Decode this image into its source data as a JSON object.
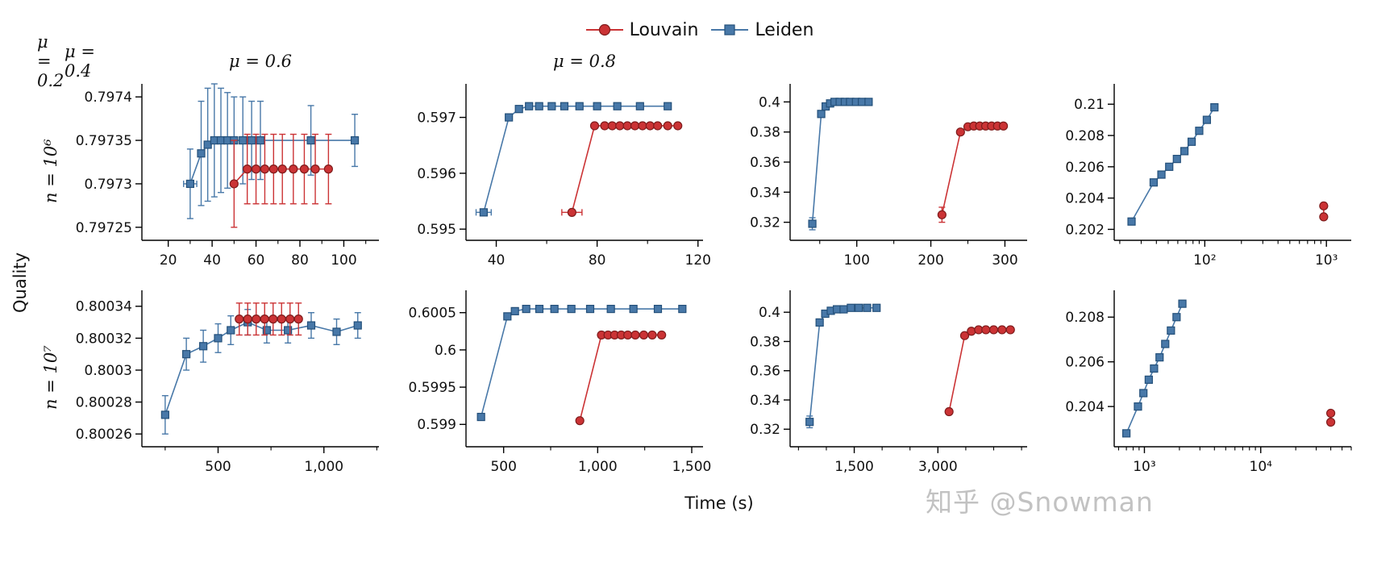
{
  "colors": {
    "louvain": "#cb3335",
    "louvain_edge": "#7f1c1c",
    "leiden": "#4878a8",
    "leiden_edge": "#24507a",
    "axis": "#000000",
    "watermark": "#bdbdbd"
  },
  "watermark": "知乎 @Snowman",
  "chart_data": {
    "type": "line",
    "layout": "2x4 small multiples with error bars",
    "legend_position": "top center",
    "legend": [
      {
        "key": "louvain",
        "label": "Louvain",
        "marker": "circle"
      },
      {
        "key": "leiden",
        "label": "Leiden",
        "marker": "square"
      }
    ],
    "xlabel": "Time (s)",
    "ylabel": "Quality",
    "col_titles": [
      "μ = 0.2",
      "μ = 0.4",
      "μ = 0.6",
      "μ = 0.8"
    ],
    "row_labels": [
      "n = 10⁶",
      "n = 10⁷"
    ],
    "subplots": [
      {
        "mu": "μ = 0.2",
        "n": "n = 10⁶",
        "xscale": "linear",
        "xlim": [
          8,
          116
        ],
        "xticks": [
          {
            "v": 20,
            "label": "20"
          },
          {
            "v": 40,
            "label": "40"
          },
          {
            "v": 60,
            "label": "60"
          },
          {
            "v": 80,
            "label": "80"
          },
          {
            "v": 100,
            "label": "100"
          }
        ],
        "xminor": [
          30,
          50,
          70,
          90,
          110
        ],
        "ylim": [
          0.797235,
          0.797415
        ],
        "yticks": [
          {
            "v": 0.79725,
            "label": "0.79725"
          },
          {
            "v": 0.7973,
            "label": "0.7973"
          },
          {
            "v": 0.79735,
            "label": "0.79735"
          },
          {
            "v": 0.7974,
            "label": "0.7974"
          }
        ],
        "series": [
          {
            "key": "leiden",
            "name": "Leiden",
            "marker": "square",
            "x": [
              30,
              35,
              38,
              41,
              44,
              47,
              50,
              54,
              58,
              62,
              85,
              105
            ],
            "y": [
              0.7973,
              0.797335,
              0.797345,
              0.79735,
              0.79735,
              0.79735,
              0.79735,
              0.79735,
              0.79735,
              0.79735,
              0.79735,
              0.79735
            ],
            "yerr": [
              4e-05,
              6e-05,
              6.5e-05,
              6.5e-05,
              6e-05,
              5.5e-05,
              5e-05,
              5e-05,
              4.5e-05,
              4.5e-05,
              4e-05,
              3e-05
            ],
            "xerr": [
              3,
              0,
              0,
              0,
              0,
              0,
              0,
              0,
              0,
              0,
              0,
              0
            ]
          },
          {
            "key": "louvain",
            "name": "Louvain",
            "marker": "circle",
            "x": [
              50,
              56,
              60,
              64,
              68,
              72,
              77,
              82,
              87,
              93
            ],
            "y": [
              0.7973,
              0.797317,
              0.797317,
              0.797317,
              0.797317,
              0.797317,
              0.797317,
              0.797317,
              0.797317,
              0.797317
            ],
            "yerr": [
              5e-05,
              4e-05,
              4e-05,
              4e-05,
              4e-05,
              4e-05,
              4e-05,
              4e-05,
              4e-05,
              4e-05
            ]
          }
        ]
      },
      {
        "mu": "μ = 0.4",
        "n": "n = 10⁶",
        "xscale": "linear",
        "xlim": [
          28,
          122
        ],
        "xticks": [
          {
            "v": 40,
            "label": "40"
          },
          {
            "v": 80,
            "label": "80"
          },
          {
            "v": 120,
            "label": "120"
          }
        ],
        "xminor": [
          60,
          100
        ],
        "ylim": [
          0.5948,
          0.5976
        ],
        "yticks": [
          {
            "v": 0.595,
            "label": "0.595"
          },
          {
            "v": 0.596,
            "label": "0.596"
          },
          {
            "v": 0.597,
            "label": "0.597"
          }
        ],
        "series": [
          {
            "key": "leiden",
            "name": "Leiden",
            "marker": "square",
            "x": [
              35,
              45,
              49,
              53,
              57,
              62,
              67,
              73,
              80,
              88,
              97,
              108
            ],
            "y": [
              0.5953,
              0.597,
              0.59715,
              0.5972,
              0.5972,
              0.5972,
              0.5972,
              0.5972,
              0.5972,
              0.5972,
              0.5972,
              0.5972
            ],
            "xerr": [
              3,
              0,
              0,
              0,
              0,
              0,
              0,
              0,
              0,
              0,
              0,
              0
            ]
          },
          {
            "key": "louvain",
            "name": "Louvain",
            "marker": "circle",
            "x": [
              70,
              79,
              83,
              86,
              89,
              92,
              95,
              98,
              101,
              104,
              108,
              112
            ],
            "y": [
              0.5953,
              0.59685,
              0.59685,
              0.59685,
              0.59685,
              0.59685,
              0.59685,
              0.59685,
              0.59685,
              0.59685,
              0.59685,
              0.59685
            ],
            "xerr": [
              4,
              0,
              0,
              0,
              0,
              0,
              0,
              0,
              0,
              0,
              0,
              0
            ]
          }
        ]
      },
      {
        "mu": "μ = 0.6",
        "n": "n = 10⁶",
        "xscale": "linear",
        "xlim": [
          10,
          330
        ],
        "xticks": [
          {
            "v": 100,
            "label": "100"
          },
          {
            "v": 200,
            "label": "200"
          },
          {
            "v": 300,
            "label": "300"
          }
        ],
        "xminor": [
          50,
          150,
          250
        ],
        "ylim": [
          0.308,
          0.412
        ],
        "yticks": [
          {
            "v": 0.32,
            "label": "0.32"
          },
          {
            "v": 0.34,
            "label": "0.34"
          },
          {
            "v": 0.36,
            "label": "0.36"
          },
          {
            "v": 0.38,
            "label": "0.38"
          },
          {
            "v": 0.4,
            "label": "0.4"
          }
        ],
        "series": [
          {
            "key": "leiden",
            "name": "Leiden",
            "marker": "square",
            "x": [
              40,
              52,
              58,
              64,
              70,
              77,
              84,
              91,
              99,
              107,
              116
            ],
            "y": [
              0.319,
              0.392,
              0.397,
              0.399,
              0.4,
              0.4,
              0.4,
              0.4,
              0.4,
              0.4,
              0.4
            ],
            "yerr": [
              0.004,
              0,
              0,
              0,
              0,
              0,
              0,
              0,
              0,
              0,
              0
            ]
          },
          {
            "key": "louvain",
            "name": "Louvain",
            "marker": "circle",
            "x": [
              215,
              240,
              250,
              258,
              266,
              274,
              282,
              290,
              298
            ],
            "y": [
              0.325,
              0.38,
              0.3835,
              0.384,
              0.384,
              0.384,
              0.384,
              0.384,
              0.384
            ],
            "yerr": [
              0.005,
              0,
              0,
              0,
              0,
              0,
              0,
              0,
              0
            ]
          }
        ]
      },
      {
        "mu": "μ = 0.8",
        "n": "n = 10⁶",
        "xscale": "log",
        "xlim": [
          18,
          1600
        ],
        "xticks": [
          {
            "v": 100,
            "label": "10²"
          },
          {
            "v": 1000,
            "label": "10³"
          }
        ],
        "ylim": [
          0.2013,
          0.2113
        ],
        "yticks": [
          {
            "v": 0.202,
            "label": "0.202"
          },
          {
            "v": 0.204,
            "label": "0.204"
          },
          {
            "v": 0.206,
            "label": "0.206"
          },
          {
            "v": 0.208,
            "label": "0.208"
          },
          {
            "v": 0.21,
            "label": "0.21"
          }
        ],
        "series": [
          {
            "key": "leiden",
            "name": "Leiden",
            "marker": "square",
            "x": [
              25,
              38,
              44,
              51,
              59,
              68,
              78,
              90,
              104,
              120
            ],
            "y": [
              0.2025,
              0.205,
              0.2055,
              0.206,
              0.2065,
              0.207,
              0.2076,
              0.2083,
              0.209,
              0.2098
            ]
          },
          {
            "key": "louvain",
            "name": "Louvain",
            "marker": "circle",
            "x": [
              950,
              950
            ],
            "y": [
              0.2035,
              0.2028
            ]
          }
        ]
      },
      {
        "mu": "μ = 0.2",
        "n": "n = 10⁷",
        "xscale": "linear",
        "xlim": [
          140,
          1260
        ],
        "xticks": [
          {
            "v": 500,
            "label": "500"
          },
          {
            "v": 1000,
            "label": "1,000"
          }
        ],
        "xminor": [
          250,
          750,
          1250
        ],
        "ylim": [
          0.800252,
          0.80035
        ],
        "yticks": [
          {
            "v": 0.80026,
            "label": "0.80026"
          },
          {
            "v": 0.80028,
            "label": "0.80028"
          },
          {
            "v": 0.8003,
            "label": "0.8003"
          },
          {
            "v": 0.80032,
            "label": "0.80032"
          },
          {
            "v": 0.80034,
            "label": "0.80034"
          }
        ],
        "series": [
          {
            "key": "leiden",
            "name": "Leiden",
            "marker": "square",
            "x": [
              250,
              350,
              430,
              500,
              560,
              640,
              730,
              830,
              940,
              1060,
              1160
            ],
            "y": [
              0.800272,
              0.80031,
              0.800315,
              0.80032,
              0.800325,
              0.80033,
              0.800325,
              0.800325,
              0.800328,
              0.800324,
              0.800328
            ],
            "yerr": [
              1.2e-05,
              1e-05,
              1e-05,
              9e-06,
              9e-06,
              8e-06,
              8e-06,
              8e-06,
              8e-06,
              8e-06,
              8e-06
            ]
          },
          {
            "key": "louvain",
            "name": "Louvain",
            "marker": "circle",
            "x": [
              600,
              640,
              680,
              720,
              760,
              800,
              840,
              880
            ],
            "y": [
              0.800332,
              0.800332,
              0.800332,
              0.800332,
              0.800332,
              0.800332,
              0.800332,
              0.800332
            ],
            "yerr": [
              1e-05,
              1e-05,
              1e-05,
              1e-05,
              1e-05,
              1e-05,
              1e-05,
              1e-05
            ]
          }
        ]
      },
      {
        "mu": "μ = 0.4",
        "n": "n = 10⁷",
        "xscale": "linear",
        "xlim": [
          300,
          1560
        ],
        "xticks": [
          {
            "v": 500,
            "label": "500"
          },
          {
            "v": 1000,
            "label": "1,000"
          },
          {
            "v": 1500,
            "label": "1,500"
          }
        ],
        "xminor": [
          750,
          1250
        ],
        "ylim": [
          0.5987,
          0.6008
        ],
        "yticks": [
          {
            "v": 0.599,
            "label": "0.599"
          },
          {
            "v": 0.5995,
            "label": "0.5995"
          },
          {
            "v": 0.6,
            "label": "0.6"
          },
          {
            "v": 0.6005,
            "label": "0.6005"
          }
        ],
        "series": [
          {
            "key": "leiden",
            "name": "Leiden",
            "marker": "square",
            "x": [
              380,
              520,
              560,
              620,
              690,
              770,
              860,
              960,
              1070,
              1190,
              1320,
              1450
            ],
            "y": [
              0.5991,
              0.60045,
              0.60052,
              0.60055,
              0.60055,
              0.60055,
              0.60055,
              0.60055,
              0.60055,
              0.60055,
              0.60055,
              0.60055
            ]
          },
          {
            "key": "louvain",
            "name": "Louvain",
            "marker": "circle",
            "x": [
              905,
              1020,
              1055,
              1090,
              1125,
              1160,
              1200,
              1245,
              1290,
              1340
            ],
            "y": [
              0.59905,
              0.6002,
              0.6002,
              0.6002,
              0.6002,
              0.6002,
              0.6002,
              0.6002,
              0.6002,
              0.6002
            ]
          }
        ]
      },
      {
        "mu": "μ = 0.6",
        "n": "n = 10⁷",
        "xscale": "linear",
        "xlim": [
          350,
          4600
        ],
        "xticks": [
          {
            "v": 1500,
            "label": "1,500"
          },
          {
            "v": 3000,
            "label": "3,000"
          }
        ],
        "xminor": [
          500,
          1000,
          2000,
          2500,
          3500,
          4000,
          4500
        ],
        "ylim": [
          0.308,
          0.415
        ],
        "yticks": [
          {
            "v": 0.32,
            "label": "0.32"
          },
          {
            "v": 0.34,
            "label": "0.34"
          },
          {
            "v": 0.36,
            "label": "0.36"
          },
          {
            "v": 0.38,
            "label": "0.38"
          },
          {
            "v": 0.4,
            "label": "0.4"
          }
        ],
        "series": [
          {
            "key": "leiden",
            "name": "Leiden",
            "marker": "square",
            "x": [
              700,
              880,
              980,
              1080,
              1190,
              1310,
              1440,
              1580,
              1730,
              1900
            ],
            "y": [
              0.325,
              0.393,
              0.399,
              0.401,
              0.402,
              0.402,
              0.403,
              0.403,
              0.403,
              0.403
            ],
            "yerr": [
              0.004,
              0,
              0,
              0,
              0,
              0,
              0,
              0,
              0,
              0
            ]
          },
          {
            "key": "louvain",
            "name": "Louvain",
            "marker": "circle",
            "x": [
              3200,
              3480,
              3600,
              3730,
              3860,
              4000,
              4150,
              4300
            ],
            "y": [
              0.332,
              0.384,
              0.387,
              0.388,
              0.388,
              0.388,
              0.388,
              0.388
            ]
          }
        ]
      },
      {
        "mu": "μ = 0.8",
        "n": "n = 10⁷",
        "xscale": "log",
        "xlim": [
          550,
          60000
        ],
        "xticks": [
          {
            "v": 1000,
            "label": "10³"
          },
          {
            "v": 10000,
            "label": "10⁴"
          }
        ],
        "ylim": [
          0.2022,
          0.2092
        ],
        "yticks": [
          {
            "v": 0.204,
            "label": "0.204"
          },
          {
            "v": 0.206,
            "label": "0.206"
          },
          {
            "v": 0.208,
            "label": "0.208"
          }
        ],
        "series": [
          {
            "key": "leiden",
            "name": "Leiden",
            "marker": "square",
            "x": [
              700,
              880,
              980,
              1090,
              1210,
              1350,
              1510,
              1690,
              1890,
              2120
            ],
            "y": [
              0.2028,
              0.204,
              0.2046,
              0.2052,
              0.2057,
              0.2062,
              0.2068,
              0.2074,
              0.208,
              0.2086
            ]
          },
          {
            "key": "louvain",
            "name": "Louvain",
            "marker": "circle",
            "x": [
              40000,
              40000
            ],
            "y": [
              0.2037,
              0.2033
            ]
          }
        ]
      }
    ]
  }
}
